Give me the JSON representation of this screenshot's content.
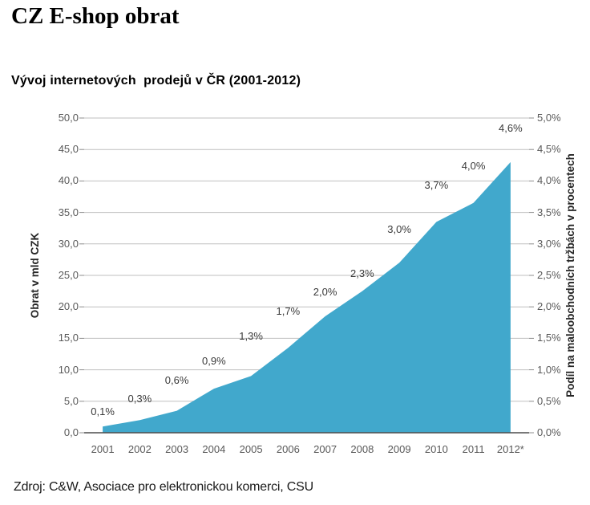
{
  "page": {
    "title": "CZ E-shop obrat"
  },
  "footer": {
    "source": "Zdroj: C&W, Asociace pro elektronickou komerci, CSU"
  },
  "chart_data": {
    "type": "area",
    "title": "Vývoj internetových  prodejů v ČR (2001-2012)",
    "categories": [
      "2001",
      "2002",
      "2003",
      "2004",
      "2005",
      "2006",
      "2007",
      "2008",
      "2009",
      "2010",
      "2011",
      "2012*"
    ],
    "series": [
      {
        "name": "Obrat v mld CZK",
        "axis": "left",
        "type": "area",
        "color": "#41A8CC",
        "values": [
          1,
          2,
          3.5,
          7,
          9,
          13.5,
          18.5,
          22.5,
          27,
          33.5,
          36.5,
          43
        ]
      },
      {
        "name": "Podíl na maloobchodních tržbách v procentech",
        "axis": "right",
        "type": "labels-only",
        "values": [
          0.1,
          0.3,
          0.6,
          0.9,
          1.3,
          1.7,
          2.0,
          2.3,
          3.0,
          3.7,
          4.0,
          4.6
        ],
        "labels": [
          "0,1%",
          "0,3%",
          "0,6%",
          "0,9%",
          "1,3%",
          "1,7%",
          "2,0%",
          "2,3%",
          "3,0%",
          "3,7%",
          "4,0%",
          "4,6%"
        ]
      }
    ],
    "ylabel_left": "Obrat v mld CZK",
    "ylabel_right": "Podíl na maloobchodních tržbách v procentech",
    "ylim_left": [
      0,
      50
    ],
    "ylim_right": [
      0,
      5
    ],
    "yticks_left": [
      "0,0",
      "5,0",
      "10,0",
      "15,0",
      "20,0",
      "25,0",
      "30,0",
      "35,0",
      "40,0",
      "45,0",
      "50,0"
    ],
    "yticks_right": [
      "0,0%",
      "0,5%",
      "1,0%",
      "1,5%",
      "2,0%",
      "2,5%",
      "3,0%",
      "3,5%",
      "4,0%",
      "4,5%",
      "5,0%"
    ],
    "grid": true,
    "legend": "none",
    "colors": {
      "area_fill": "#41A8CC",
      "gridline": "#BFBFBF",
      "axis_line": "#4D4D4D",
      "tick_mark": "#8C8C8C",
      "tick_text": "#595959"
    }
  }
}
